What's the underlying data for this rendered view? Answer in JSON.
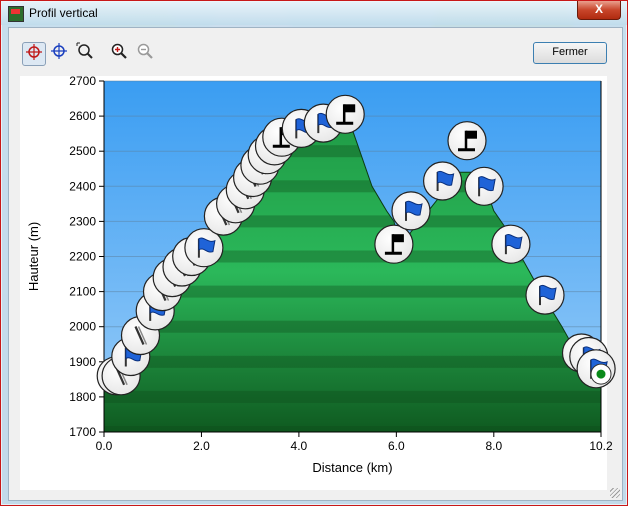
{
  "window": {
    "title": "Profil vertical",
    "close_label": "X"
  },
  "toolbar": {
    "tools": [
      {
        "icon": "crosshair-red-icon",
        "active": true
      },
      {
        "icon": "crosshair-blue-icon",
        "active": false
      },
      {
        "icon": "zoom-region-icon",
        "active": false
      },
      {
        "icon": "zoom-in-icon",
        "active": false
      },
      {
        "icon": "zoom-out-icon",
        "active": false
      }
    ],
    "close_button": "Fermer"
  },
  "chart_data": {
    "type": "area",
    "xlabel": "Distance   (km)",
    "ylabel": "Hauteur (m)",
    "xlim": [
      0,
      10.2
    ],
    "ylim": [
      1700,
      2700
    ],
    "xticks": [
      "0.0",
      "2.0",
      "4.0",
      "6.0",
      "8.0",
      "10.2"
    ],
    "yticks": [
      "1700",
      "1800",
      "1900",
      "2000",
      "2100",
      "2200",
      "2300",
      "2400",
      "2500",
      "2600",
      "2700"
    ],
    "colors": {
      "sky_top": "#3a9df2",
      "sky_bottom": "#9acdf8",
      "terrain_dark": "#0f5a20",
      "terrain": "#1f9a45",
      "terrain_light": "#2bb85a"
    },
    "profile": {
      "x": [
        0,
        0.15,
        0.5,
        1.0,
        1.5,
        2.0,
        2.5,
        3.0,
        3.5,
        4.0,
        4.3,
        4.6,
        4.85,
        5.0,
        5.2,
        5.5,
        5.8,
        5.95,
        6.1,
        6.3,
        6.6,
        7.0,
        7.3,
        7.6,
        7.8,
        8.0,
        8.3,
        8.6,
        9.0,
        9.4,
        9.8,
        10.05,
        10.2
      ],
      "y": [
        1860,
        1860,
        1930,
        2030,
        2130,
        2210,
        2300,
        2390,
        2480,
        2560,
        2580,
        2600,
        2610,
        2600,
        2520,
        2400,
        2330,
        2300,
        2220,
        2270,
        2320,
        2390,
        2440,
        2440,
        2410,
        2330,
        2270,
        2190,
        2090,
        2000,
        1900,
        1880,
        1870
      ]
    },
    "markers": [
      {
        "kind": "post",
        "x": 0.25,
        "y": 1860
      },
      {
        "kind": "post",
        "x": 0.35,
        "y": 1860
      },
      {
        "kind": "flag",
        "x": 0.55,
        "y": 1915
      },
      {
        "kind": "post",
        "x": 0.75,
        "y": 1975
      },
      {
        "kind": "flag",
        "x": 1.05,
        "y": 2045
      },
      {
        "kind": "post",
        "x": 1.2,
        "y": 2100
      },
      {
        "kind": "post",
        "x": 1.4,
        "y": 2140
      },
      {
        "kind": "post",
        "x": 1.6,
        "y": 2170
      },
      {
        "kind": "post",
        "x": 1.8,
        "y": 2200
      },
      {
        "kind": "flag",
        "x": 2.05,
        "y": 2225
      },
      {
        "kind": "post",
        "x": 2.45,
        "y": 2315
      },
      {
        "kind": "post",
        "x": 2.7,
        "y": 2350
      },
      {
        "kind": "post",
        "x": 2.9,
        "y": 2390
      },
      {
        "kind": "post",
        "x": 3.05,
        "y": 2425
      },
      {
        "kind": "post",
        "x": 3.2,
        "y": 2460
      },
      {
        "kind": "post",
        "x": 3.35,
        "y": 2490
      },
      {
        "kind": "post",
        "x": 3.5,
        "y": 2515
      },
      {
        "kind": "summit",
        "x": 3.65,
        "y": 2540
      },
      {
        "kind": "flag",
        "x": 4.05,
        "y": 2565
      },
      {
        "kind": "flag",
        "x": 4.5,
        "y": 2580
      },
      {
        "kind": "summit",
        "x": 4.95,
        "y": 2605
      },
      {
        "kind": "summit",
        "x": 5.95,
        "y": 2235
      },
      {
        "kind": "flag",
        "x": 6.3,
        "y": 2330
      },
      {
        "kind": "flag",
        "x": 6.95,
        "y": 2415
      },
      {
        "kind": "summit",
        "x": 7.45,
        "y": 2530
      },
      {
        "kind": "flag",
        "x": 7.8,
        "y": 2400
      },
      {
        "kind": "flag",
        "x": 8.35,
        "y": 2235
      },
      {
        "kind": "flag",
        "x": 9.05,
        "y": 2090
      },
      {
        "kind": "post",
        "x": 9.8,
        "y": 1925
      },
      {
        "kind": "flag",
        "x": 9.95,
        "y": 1915
      },
      {
        "kind": "flag",
        "x": 10.1,
        "y": 1880
      },
      {
        "kind": "dot",
        "x": 10.2,
        "y": 1865
      }
    ]
  }
}
